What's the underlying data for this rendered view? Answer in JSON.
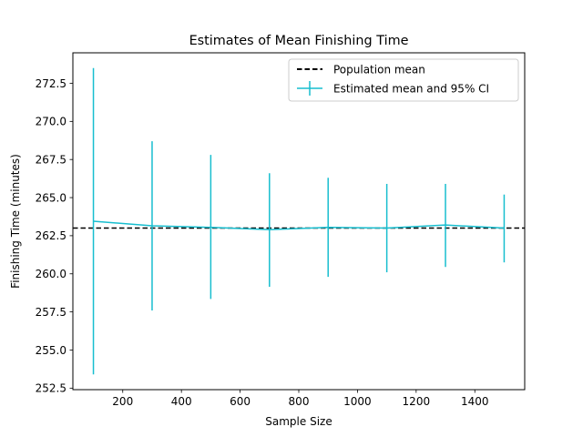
{
  "chart_data": {
    "type": "line",
    "title": "Estimates of Mean Finishing Time",
    "xlabel": "Sample Size",
    "ylabel": "Finishing Time (minutes)",
    "xlim": [
      30,
      1570
    ],
    "ylim": [
      252.4,
      274.5
    ],
    "x_ticks": [
      200,
      400,
      600,
      800,
      1000,
      1200,
      1400
    ],
    "y_ticks": [
      252.5,
      255.0,
      257.5,
      260.0,
      262.5,
      265.0,
      267.5,
      270.0,
      272.5
    ],
    "x_tick_labels": [
      "200",
      "400",
      "600",
      "800",
      "1000",
      "1200",
      "1400"
    ],
    "y_tick_labels": [
      "252.5",
      "255.0",
      "257.5",
      "260.0",
      "262.5",
      "265.0",
      "267.5",
      "270.0",
      "272.5"
    ],
    "grid": false,
    "legend_position": "top-right",
    "legend": [
      {
        "label": "Population mean",
        "style": "dashed",
        "color": "#000000"
      },
      {
        "label": "Estimated mean and 95% CI",
        "style": "errorbar",
        "color": "#17becf"
      }
    ],
    "population_mean": 263.0,
    "series": [
      {
        "name": "Estimated mean and 95% CI",
        "color": "#17becf",
        "x": [
          100,
          300,
          500,
          700,
          900,
          1100,
          1300,
          1500
        ],
        "y": [
          263.45,
          263.15,
          263.05,
          262.9,
          263.05,
          263.0,
          263.2,
          263.0
        ],
        "ci_lower": [
          253.4,
          257.6,
          258.35,
          259.15,
          259.8,
          260.1,
          260.45,
          260.75
        ],
        "ci_upper": [
          273.5,
          268.7,
          267.8,
          266.6,
          266.3,
          265.9,
          265.9,
          265.2
        ]
      }
    ]
  }
}
